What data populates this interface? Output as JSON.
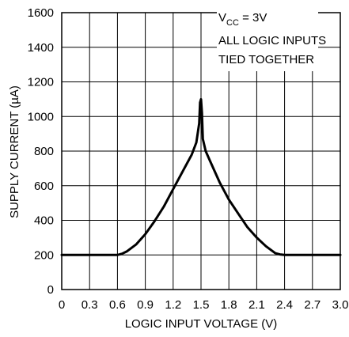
{
  "chart_data": {
    "type": "line",
    "xlabel": "LOGIC INPUT VOLTAGE (V)",
    "ylabel": "SUPPLY CURRENT (µA)",
    "xlim": [
      0,
      3.0
    ],
    "ylim": [
      0,
      1600
    ],
    "xticks": [
      0,
      0.3,
      0.6,
      0.9,
      1.2,
      1.5,
      1.8,
      2.1,
      2.4,
      2.7,
      3.0
    ],
    "xtick_labels": [
      "0",
      "0.3",
      "0.6",
      "0.9",
      "1.2",
      "1.5",
      "1.8",
      "2.1",
      "2.4",
      "2.7",
      "3.0"
    ],
    "yticks": [
      0,
      200,
      400,
      600,
      800,
      1000,
      1200,
      1400,
      1600
    ],
    "ytick_labels": [
      "0",
      "200",
      "400",
      "600",
      "800",
      "1000",
      "1200",
      "1400",
      "1600"
    ],
    "grid": true,
    "annotation": {
      "vcc_prefix": "V",
      "vcc_sub": "CC",
      "vcc_rest": " = 3V",
      "line2": "ALL LOGIC INPUTS",
      "line3": "TIED TOGETHER"
    },
    "series": [
      {
        "x": [
          0,
          0.6,
          0.65,
          0.7,
          0.8,
          0.9,
          1.0,
          1.1,
          1.2,
          1.3,
          1.4,
          1.45,
          1.48,
          1.49,
          1.5,
          1.51,
          1.52,
          1.55,
          1.6,
          1.7,
          1.8,
          1.9,
          2.0,
          2.1,
          2.2,
          2.3,
          2.35,
          2.4,
          3.0
        ],
        "y": [
          200,
          200,
          207,
          220,
          260,
          320,
          395,
          480,
          580,
          680,
          780,
          850,
          960,
          1080,
          1100,
          1020,
          870,
          800,
          740,
          620,
          520,
          440,
          360,
          300,
          250,
          210,
          203,
          200,
          200
        ]
      }
    ]
  }
}
